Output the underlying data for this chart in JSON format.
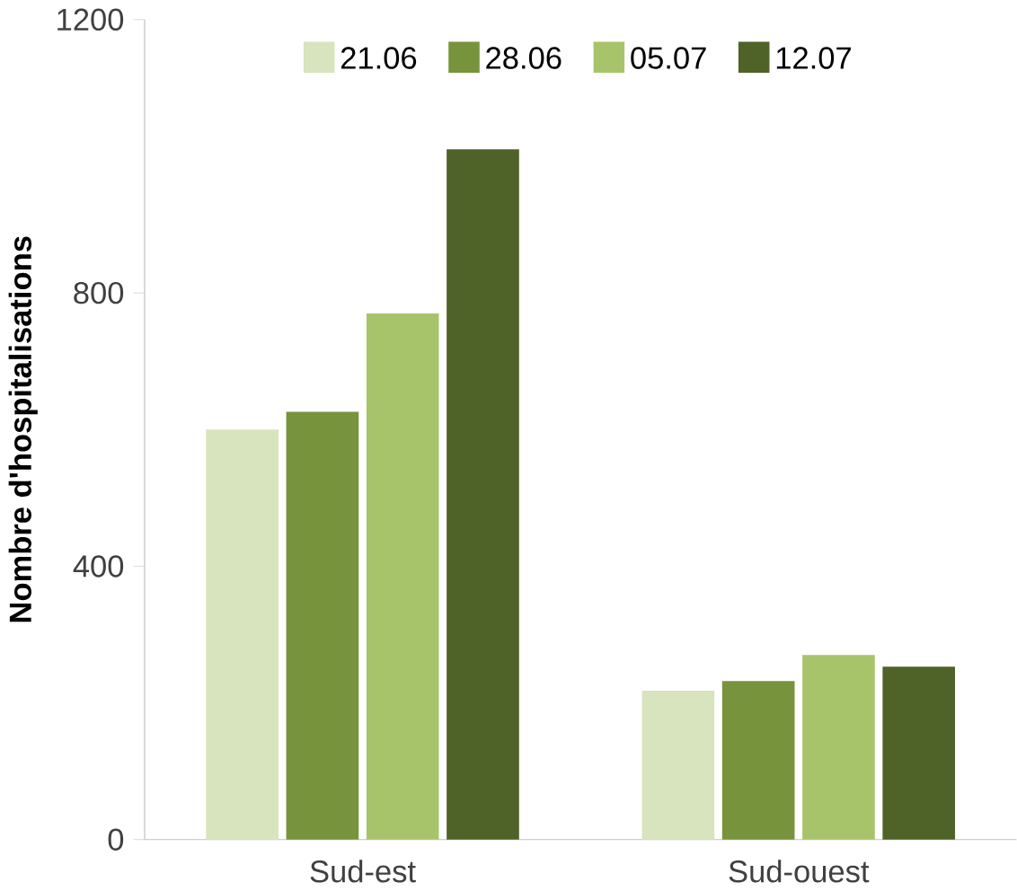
{
  "chart_data": {
    "type": "bar",
    "ylabel": "Nombre d'hospitalisations",
    "categories": [
      "Sud-est",
      "Sud-ouest"
    ],
    "series": [
      {
        "name": "21.06",
        "color": "#d7e4bd",
        "values": [
          600,
          218
        ]
      },
      {
        "name": "28.06",
        "color": "#77933c",
        "values": [
          626,
          232
        ]
      },
      {
        "name": "05.07",
        "color": "#a8c46a",
        "values": [
          770,
          270
        ]
      },
      {
        "name": "12.07",
        "color": "#4f6228",
        "values": [
          1010,
          253
        ]
      }
    ],
    "ylim": [
      0,
      1200
    ],
    "yticks": [
      0,
      400,
      800,
      1200
    ],
    "legend": "top",
    "grid": false
  }
}
